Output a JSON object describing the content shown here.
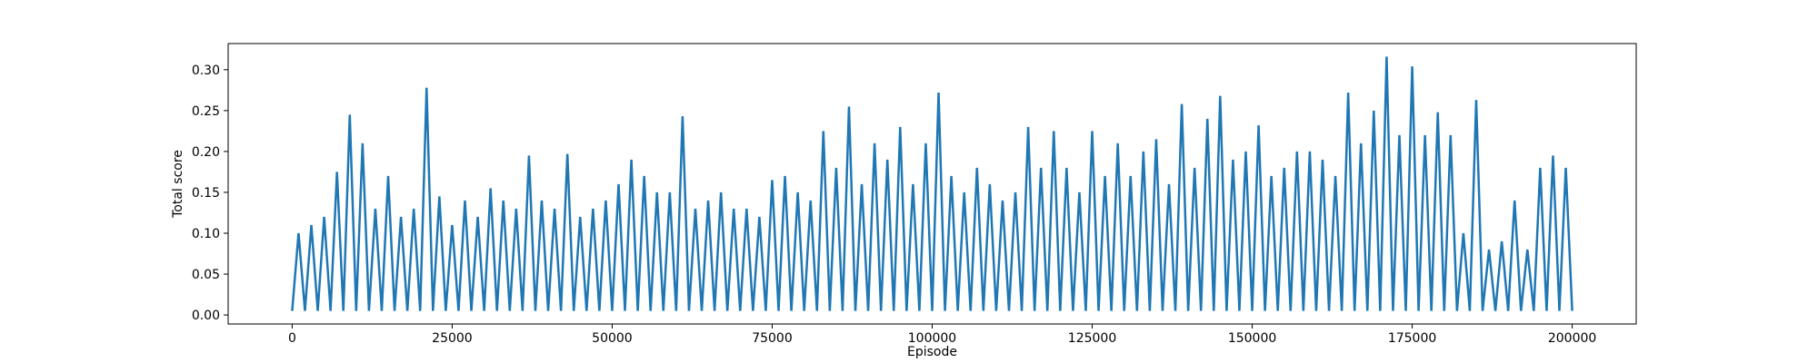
{
  "chart_data": {
    "type": "line",
    "x_label": "Episode",
    "y_label": "Total score",
    "x": [
      0,
      1000,
      2000,
      3000,
      4000,
      5000,
      6000,
      7000,
      8000,
      9000,
      10000,
      11000,
      12000,
      13000,
      14000,
      15000,
      16000,
      17000,
      18000,
      19000,
      20000,
      21000,
      22000,
      23000,
      24000,
      25000,
      26000,
      27000,
      28000,
      29000,
      30000,
      31000,
      32000,
      33000,
      34000,
      35000,
      36000,
      37000,
      38000,
      39000,
      40000,
      41000,
      42000,
      43000,
      44000,
      45000,
      46000,
      47000,
      48000,
      49000,
      50000,
      51000,
      52000,
      53000,
      54000,
      55000,
      56000,
      57000,
      58000,
      59000,
      60000,
      61000,
      62000,
      63000,
      64000,
      65000,
      66000,
      67000,
      68000,
      69000,
      70000,
      71000,
      72000,
      73000,
      74000,
      75000,
      76000,
      77000,
      78000,
      79000,
      80000,
      81000,
      82000,
      83000,
      84000,
      85000,
      86000,
      87000,
      88000,
      89000,
      90000,
      91000,
      92000,
      93000,
      94000,
      95000,
      96000,
      97000,
      98000,
      99000,
      100000,
      101000,
      102000,
      103000,
      104000,
      105000,
      106000,
      107000,
      108000,
      109000,
      110000,
      111000,
      112000,
      113000,
      114000,
      115000,
      116000,
      117000,
      118000,
      119000,
      120000,
      121000,
      122000,
      123000,
      124000,
      125000,
      126000,
      127000,
      128000,
      129000,
      130000,
      131000,
      132000,
      133000,
      134000,
      135000,
      136000,
      137000,
      138000,
      139000,
      140000,
      141000,
      142000,
      143000,
      144000,
      145000,
      146000,
      147000,
      148000,
      149000,
      150000,
      151000,
      152000,
      153000,
      154000,
      155000,
      156000,
      157000,
      158000,
      159000,
      160000,
      161000,
      162000,
      163000,
      164000,
      165000,
      166000,
      167000,
      168000,
      169000,
      170000,
      171000,
      172000,
      173000,
      174000,
      175000,
      176000,
      177000,
      178000,
      179000,
      180000,
      181000,
      182000,
      183000,
      184000,
      185000,
      186000,
      187000,
      188000,
      189000,
      190000,
      191000,
      192000,
      193000,
      194000,
      195000,
      196000,
      197000,
      198000,
      199000,
      200000
    ],
    "series": [
      {
        "color": "#1f77b4",
        "values": [
          0.005,
          0.1,
          0.005,
          0.11,
          0.005,
          0.12,
          0.005,
          0.175,
          0.005,
          0.245,
          0.005,
          0.21,
          0.005,
          0.13,
          0.005,
          0.17,
          0.005,
          0.12,
          0.005,
          0.13,
          0.005,
          0.278,
          0.005,
          0.145,
          0.005,
          0.11,
          0.005,
          0.14,
          0.005,
          0.12,
          0.005,
          0.155,
          0.005,
          0.14,
          0.005,
          0.13,
          0.005,
          0.195,
          0.005,
          0.14,
          0.005,
          0.13,
          0.005,
          0.197,
          0.005,
          0.12,
          0.005,
          0.13,
          0.005,
          0.14,
          0.005,
          0.16,
          0.005,
          0.19,
          0.005,
          0.17,
          0.005,
          0.15,
          0.005,
          0.15,
          0.005,
          0.243,
          0.005,
          0.13,
          0.005,
          0.14,
          0.005,
          0.15,
          0.005,
          0.13,
          0.005,
          0.13,
          0.005,
          0.12,
          0.005,
          0.165,
          0.005,
          0.17,
          0.005,
          0.15,
          0.005,
          0.14,
          0.005,
          0.225,
          0.005,
          0.18,
          0.005,
          0.255,
          0.005,
          0.16,
          0.005,
          0.21,
          0.005,
          0.19,
          0.005,
          0.23,
          0.005,
          0.16,
          0.005,
          0.21,
          0.005,
          0.272,
          0.005,
          0.17,
          0.005,
          0.15,
          0.005,
          0.18,
          0.005,
          0.16,
          0.005,
          0.14,
          0.005,
          0.15,
          0.005,
          0.23,
          0.005,
          0.18,
          0.005,
          0.225,
          0.005,
          0.18,
          0.005,
          0.15,
          0.005,
          0.225,
          0.005,
          0.17,
          0.005,
          0.21,
          0.005,
          0.17,
          0.005,
          0.2,
          0.005,
          0.215,
          0.005,
          0.16,
          0.005,
          0.258,
          0.005,
          0.18,
          0.005,
          0.24,
          0.005,
          0.268,
          0.005,
          0.19,
          0.005,
          0.2,
          0.005,
          0.232,
          0.005,
          0.17,
          0.005,
          0.18,
          0.005,
          0.2,
          0.005,
          0.2,
          0.005,
          0.19,
          0.005,
          0.17,
          0.005,
          0.272,
          0.005,
          0.21,
          0.005,
          0.25,
          0.005,
          0.316,
          0.005,
          0.22,
          0.005,
          0.304,
          0.005,
          0.22,
          0.005,
          0.248,
          0.005,
          0.22,
          0.005,
          0.1,
          0.005,
          0.263,
          0.005,
          0.08,
          0.005,
          0.09,
          0.005,
          0.14,
          0.005,
          0.08,
          0.005,
          0.18,
          0.005,
          0.195,
          0.005,
          0.18,
          0.005
        ]
      }
    ],
    "xlim": [
      -10000,
      210000
    ],
    "xticks": [
      0,
      25000,
      50000,
      75000,
      100000,
      125000,
      150000,
      175000,
      200000
    ],
    "ylim": [
      -0.011,
      0.332
    ],
    "yticks": [
      {
        "value": 0,
        "label": "0.00"
      },
      0.05,
      {
        "value": 0.1,
        "label": "0.10"
      },
      0.15,
      {
        "value": 0.2,
        "label": "0.20"
      },
      0.25,
      {
        "value": 0.3,
        "label": "0.30"
      }
    ]
  }
}
